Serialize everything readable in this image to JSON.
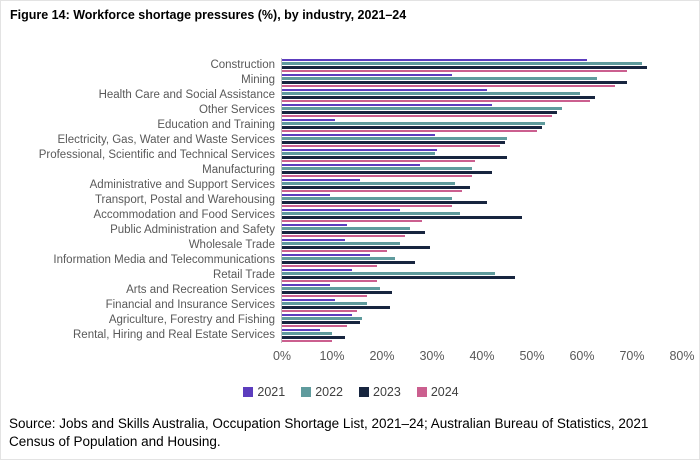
{
  "figure": {
    "title": "Figure 14: Workforce shortage pressures (%), by industry, 2021–24",
    "source": "Source: Jobs and Skills Australia, Occupation Shortage List, 2021–24; Australian Bureau of Statistics, 2021 Census of Population and Housing."
  },
  "chart_data": {
    "type": "bar",
    "orientation": "horizontal",
    "title": "Figure 14: Workforce shortage pressures (%), by industry, 2021–24",
    "xlabel": "",
    "ylabel": "",
    "xlim": [
      0,
      80
    ],
    "x_ticks": [
      "0%",
      "10%",
      "20%",
      "30%",
      "40%",
      "50%",
      "60%",
      "70%",
      "80%"
    ],
    "grid": false,
    "legend_position": "bottom",
    "categories": [
      "Construction",
      "Mining",
      "Health Care and Social Assistance",
      "Other Services",
      "Education and Training",
      "Electricity, Gas, Water and Waste Services",
      "Professional, Scientific and Technical Services",
      "Manufacturing",
      "Administrative and Support Services",
      "Transport, Postal and Warehousing",
      "Accommodation and Food Services",
      "Public Administration and Safety",
      "Wholesale Trade",
      "Information Media and Telecommunications",
      "Retail Trade",
      "Arts and Recreation Services",
      "Financial and Insurance Services",
      "Agriculture, Forestry and Fishing",
      "Rental, Hiring and Real Estate Services"
    ],
    "series": [
      {
        "name": "2021",
        "color": "#5c3dbe",
        "values": [
          61,
          34,
          41,
          42,
          10.5,
          30.5,
          31,
          27.5,
          15.5,
          9.5,
          23.5,
          13,
          12.5,
          17.5,
          14,
          9.5,
          10.5,
          14,
          7.5
        ]
      },
      {
        "name": "2022",
        "color": "#5f9b9d",
        "values": [
          72,
          63,
          59.5,
          56,
          52.5,
          45,
          30.5,
          38,
          34.5,
          34,
          35.5,
          25.5,
          23.5,
          22.5,
          42.5,
          19.5,
          17,
          16,
          10
        ]
      },
      {
        "name": "2023",
        "color": "#17253f",
        "values": [
          73,
          69,
          62.5,
          55,
          52,
          44.5,
          45,
          42,
          37.5,
          41,
          48,
          28.5,
          29.5,
          26.5,
          46.5,
          22,
          21.5,
          15.5,
          12.5
        ]
      },
      {
        "name": "2024",
        "color": "#cb5f8f",
        "values": [
          69,
          66.5,
          61.5,
          54,
          51,
          43.5,
          38.5,
          38,
          36,
          34,
          28,
          24.5,
          21,
          19,
          19,
          17,
          15,
          13,
          10
        ]
      }
    ]
  }
}
